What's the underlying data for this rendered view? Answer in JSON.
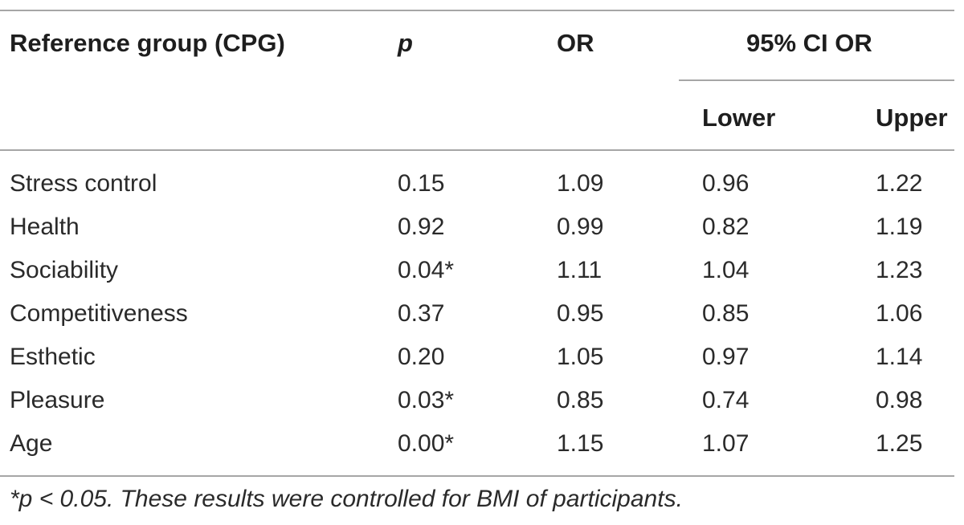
{
  "table": {
    "headers": {
      "reference_group": "Reference group (CPG)",
      "p": "p",
      "or": "OR",
      "ci": "95% CI OR",
      "lower": "Lower",
      "upper": "Upper"
    },
    "rows": [
      {
        "label": "Stress control",
        "p": "0.15",
        "or": "1.09",
        "lower": "0.96",
        "upper": "1.22"
      },
      {
        "label": "Health",
        "p": "0.92",
        "or": "0.99",
        "lower": "0.82",
        "upper": "1.19"
      },
      {
        "label": "Sociability",
        "p": "0.04*",
        "or": "1.11",
        "lower": "1.04",
        "upper": "1.23"
      },
      {
        "label": "Competitiveness",
        "p": "0.37",
        "or": "0.95",
        "lower": "0.85",
        "upper": "1.06"
      },
      {
        "label": "Esthetic",
        "p": "0.20",
        "or": "1.05",
        "lower": "0.97",
        "upper": "1.14"
      },
      {
        "label": "Pleasure",
        "p": "0.03*",
        "or": "0.85",
        "lower": "0.74",
        "upper": "0.98"
      },
      {
        "label": "Age",
        "p": "0.00*",
        "or": "1.15",
        "lower": "1.07",
        "upper": "1.25"
      }
    ],
    "footnote": "*p < 0.05. These results were controlled for BMI of participants."
  }
}
